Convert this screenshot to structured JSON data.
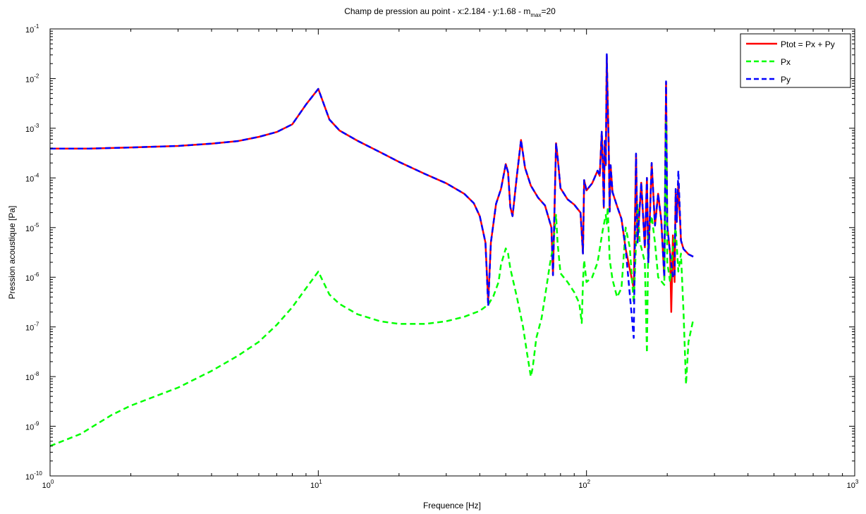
{
  "chart_data": {
    "type": "line",
    "title": {
      "main": "Champ de pression au point - x:2.184 - y:1.68 - m",
      "sub": "max",
      "tail": "=20"
    },
    "xlabel": "Frequence [Hz]",
    "ylabel": "Pression acoustique [Pa]",
    "x_scale": "log",
    "y_scale": "log",
    "xlim": [
      1,
      1000
    ],
    "ylim": [
      1e-10,
      0.1
    ],
    "grid": false,
    "legend_position": "top-right",
    "x_ticks": [
      {
        "value": 1,
        "base": "10",
        "exp": "0"
      },
      {
        "value": 10,
        "base": "10",
        "exp": "1"
      },
      {
        "value": 100,
        "base": "10",
        "exp": "2"
      },
      {
        "value": 1000,
        "base": "10",
        "exp": "3"
      }
    ],
    "y_ticks": [
      {
        "value": 1e-10,
        "base": "10",
        "exp": "-10"
      },
      {
        "value": 1e-09,
        "base": "10",
        "exp": "-9"
      },
      {
        "value": 1e-08,
        "base": "10",
        "exp": "-8"
      },
      {
        "value": 1e-07,
        "base": "10",
        "exp": "-7"
      },
      {
        "value": 1e-06,
        "base": "10",
        "exp": "-6"
      },
      {
        "value": 1e-05,
        "base": "10",
        "exp": "-5"
      },
      {
        "value": 0.0001,
        "base": "10",
        "exp": "-4"
      },
      {
        "value": 0.001,
        "base": "10",
        "exp": "-3"
      },
      {
        "value": 0.01,
        "base": "10",
        "exp": "-2"
      },
      {
        "value": 0.1,
        "base": "10",
        "exp": "-1"
      }
    ],
    "series": [
      {
        "name": "Ptot = Px + Py",
        "color": "#ff0000",
        "dash": "solid",
        "points": [
          [
            1,
            0.00039
          ],
          [
            1.4,
            0.00039
          ],
          [
            2,
            0.00041
          ],
          [
            3,
            0.00044
          ],
          [
            4,
            0.00049
          ],
          [
            5,
            0.00055
          ],
          [
            6,
            0.00067
          ],
          [
            7,
            0.00084
          ],
          [
            8,
            0.0012
          ],
          [
            9,
            0.003
          ],
          [
            10,
            0.0062
          ],
          [
            11,
            0.0015
          ],
          [
            12,
            0.0009
          ],
          [
            14,
            0.00056
          ],
          [
            17,
            0.00033
          ],
          [
            20,
            0.00021
          ],
          [
            25,
            0.00012
          ],
          [
            30,
            7.8e-05
          ],
          [
            35,
            4.8e-05
          ],
          [
            38,
            3.1e-05
          ],
          [
            40,
            1.7e-05
          ],
          [
            42,
            5e-06
          ],
          [
            43,
            3.2e-07
          ],
          [
            44,
            5e-06
          ],
          [
            46,
            3e-05
          ],
          [
            48,
            6e-05
          ],
          [
            50,
            0.00019
          ],
          [
            51,
            0.00013
          ],
          [
            52,
            2.6e-05
          ],
          [
            53,
            1.7e-05
          ],
          [
            55,
            0.00011
          ],
          [
            57,
            0.00058
          ],
          [
            59,
            0.00016
          ],
          [
            62,
            7e-05
          ],
          [
            66,
            4e-05
          ],
          [
            70,
            2.8e-05
          ],
          [
            74,
            1e-05
          ],
          [
            75,
            1.1e-06
          ],
          [
            76,
            2.4e-05
          ],
          [
            77,
            0.0005
          ],
          [
            78,
            0.00027
          ],
          [
            80,
            6.2e-05
          ],
          [
            85,
            3.7e-05
          ],
          [
            90,
            2.9e-05
          ],
          [
            95,
            2e-05
          ],
          [
            97,
            3e-06
          ],
          [
            98,
            9e-05
          ],
          [
            100,
            5.6e-05
          ],
          [
            105,
            7.8e-05
          ],
          [
            110,
            0.00014
          ],
          [
            112,
            0.00011
          ],
          [
            114,
            0.00085
          ],
          [
            115,
            0.0002
          ],
          [
            116,
            2.5e-05
          ],
          [
            117,
            0.00056
          ],
          [
            118,
            0.00018
          ],
          [
            119,
            0.029
          ],
          [
            120,
            0.0032
          ],
          [
            121,
            0.00046
          ],
          [
            122,
            2.1e-05
          ],
          [
            123,
            0.00018
          ],
          [
            125,
            5.2e-05
          ],
          [
            130,
            2.7e-05
          ],
          [
            135,
            1.5e-05
          ],
          [
            140,
            3.7e-06
          ],
          [
            150,
            6e-07
          ],
          [
            153,
            0.0003
          ],
          [
            155,
            5e-06
          ],
          [
            160,
            8e-05
          ],
          [
            165,
            4e-06
          ],
          [
            168,
            0.0001
          ],
          [
            170,
            2e-06
          ],
          [
            175,
            0.0002
          ],
          [
            180,
            1.1e-05
          ],
          [
            185,
            4.8e-05
          ],
          [
            190,
            1.4e-05
          ],
          [
            195,
            1e-06
          ],
          [
            198,
            0.0084
          ],
          [
            200,
            1.1e-05
          ],
          [
            205,
            3e-06
          ],
          [
            207,
            2e-07
          ],
          [
            210,
            7e-06
          ],
          [
            213,
            8e-07
          ],
          [
            215,
            5.2e-05
          ],
          [
            217,
            1.3e-05
          ],
          [
            220,
            8e-05
          ],
          [
            225,
            5.5e-06
          ],
          [
            230,
            3.7e-06
          ],
          [
            240,
            2.9e-06
          ],
          [
            250,
            2.6e-06
          ]
        ]
      },
      {
        "name": "Px",
        "color": "#00ff00",
        "dash": "dashed",
        "points": [
          [
            1,
            4e-10
          ],
          [
            1.3,
            7e-10
          ],
          [
            1.7,
            1.7e-09
          ],
          [
            2,
            2.6e-09
          ],
          [
            3,
            6e-09
          ],
          [
            4,
            1.3e-08
          ],
          [
            5,
            2.6e-08
          ],
          [
            6,
            5e-08
          ],
          [
            7,
            1.1e-07
          ],
          [
            8,
            2.5e-07
          ],
          [
            9,
            6e-07
          ],
          [
            10,
            1.3e-06
          ],
          [
            11,
            4.5e-07
          ],
          [
            12,
            2.9e-07
          ],
          [
            14,
            1.8e-07
          ],
          [
            17,
            1.3e-07
          ],
          [
            20,
            1.15e-07
          ],
          [
            25,
            1.15e-07
          ],
          [
            30,
            1.3e-07
          ],
          [
            35,
            1.6e-07
          ],
          [
            40,
            2.1e-07
          ],
          [
            43,
            2.8e-07
          ],
          [
            45,
            4.2e-07
          ],
          [
            47,
            8e-07
          ],
          [
            48,
            1.8e-06
          ],
          [
            50,
            3.8e-06
          ],
          [
            51,
            3e-06
          ],
          [
            52,
            1.5e-06
          ],
          [
            55,
            4e-07
          ],
          [
            58,
            1e-07
          ],
          [
            60,
            3e-08
          ],
          [
            62,
            1e-08
          ],
          [
            63,
            1.5e-08
          ],
          [
            65,
            6e-08
          ],
          [
            68,
            1.5e-07
          ],
          [
            70,
            4e-07
          ],
          [
            73,
            1.8e-06
          ],
          [
            75,
            4e-06
          ],
          [
            77,
            1.8e-05
          ],
          [
            78,
            5e-06
          ],
          [
            80,
            1.2e-06
          ],
          [
            85,
            8e-07
          ],
          [
            90,
            5e-07
          ],
          [
            94,
            3e-07
          ],
          [
            96,
            1.2e-07
          ],
          [
            97,
            8e-07
          ],
          [
            98,
            2.2e-06
          ],
          [
            100,
            8e-07
          ],
          [
            105,
            1e-06
          ],
          [
            110,
            2e-06
          ],
          [
            115,
            9e-06
          ],
          [
            118,
            1.8e-05
          ],
          [
            119,
            1.2e-05
          ],
          [
            120,
            2.6e-05
          ],
          [
            122,
            2.3e-06
          ],
          [
            125,
            9e-07
          ],
          [
            130,
            4e-07
          ],
          [
            135,
            6e-07
          ],
          [
            140,
            1e-05
          ],
          [
            145,
            4e-06
          ],
          [
            150,
            3e-07
          ],
          [
            155,
            2.9e-05
          ],
          [
            158,
            5e-06
          ],
          [
            160,
            4e-06
          ],
          [
            165,
            2e-06
          ],
          [
            168,
            3e-08
          ],
          [
            170,
            7e-06
          ],
          [
            175,
            1.7e-05
          ],
          [
            180,
            5e-06
          ],
          [
            185,
            1e-06
          ],
          [
            195,
            7e-07
          ],
          [
            198,
            0.0013
          ],
          [
            200,
            2e-06
          ],
          [
            205,
            8e-07
          ],
          [
            210,
            4e-06
          ],
          [
            215,
            1e-05
          ],
          [
            220,
            1.3e-06
          ],
          [
            225,
            3e-06
          ],
          [
            230,
            2e-07
          ],
          [
            235,
            7e-09
          ],
          [
            240,
            5e-08
          ],
          [
            250,
            1.4e-07
          ]
        ]
      },
      {
        "name": "Py",
        "color": "#0000ff",
        "dash": "dashed",
        "points": [
          [
            1,
            0.00039
          ],
          [
            1.4,
            0.00039
          ],
          [
            2,
            0.00041
          ],
          [
            3,
            0.00044
          ],
          [
            4,
            0.00049
          ],
          [
            5,
            0.00055
          ],
          [
            6,
            0.00067
          ],
          [
            7,
            0.00084
          ],
          [
            8,
            0.0012
          ],
          [
            9,
            0.003
          ],
          [
            10,
            0.0062
          ],
          [
            11,
            0.0015
          ],
          [
            12,
            0.0009
          ],
          [
            14,
            0.00056
          ],
          [
            17,
            0.00033
          ],
          [
            20,
            0.00021
          ],
          [
            25,
            0.00012
          ],
          [
            30,
            7.8e-05
          ],
          [
            35,
            4.8e-05
          ],
          [
            38,
            3.1e-05
          ],
          [
            40,
            1.7e-05
          ],
          [
            42,
            5e-06
          ],
          [
            43,
            2.6e-07
          ],
          [
            44,
            5e-06
          ],
          [
            46,
            3e-05
          ],
          [
            48,
            6e-05
          ],
          [
            50,
            0.00019
          ],
          [
            51,
            0.00013
          ],
          [
            52,
            2.6e-05
          ],
          [
            53,
            1.7e-05
          ],
          [
            55,
            0.00011
          ],
          [
            57,
            0.00058
          ],
          [
            59,
            0.00016
          ],
          [
            62,
            7e-05
          ],
          [
            66,
            4e-05
          ],
          [
            70,
            2.8e-05
          ],
          [
            74,
            1e-05
          ],
          [
            75,
            1.1e-06
          ],
          [
            76,
            2.4e-05
          ],
          [
            77,
            0.0005
          ],
          [
            78,
            0.00027
          ],
          [
            80,
            6.2e-05
          ],
          [
            85,
            3.7e-05
          ],
          [
            90,
            2.9e-05
          ],
          [
            95,
            2e-05
          ],
          [
            97,
            3e-06
          ],
          [
            98,
            9e-05
          ],
          [
            100,
            5.6e-05
          ],
          [
            105,
            7.8e-05
          ],
          [
            110,
            0.00014
          ],
          [
            112,
            0.00011
          ],
          [
            114,
            0.00085
          ],
          [
            115,
            0.0002
          ],
          [
            116,
            2.5e-05
          ],
          [
            117,
            0.00056
          ],
          [
            118,
            0.00018
          ],
          [
            119,
            0.031
          ],
          [
            120,
            0.0032
          ],
          [
            121,
            0.00046
          ],
          [
            122,
            2.1e-05
          ],
          [
            123,
            0.00018
          ],
          [
            125,
            5.2e-05
          ],
          [
            130,
            2.7e-05
          ],
          [
            135,
            1.5e-05
          ],
          [
            140,
            3.7e-06
          ],
          [
            150,
            6e-08
          ],
          [
            153,
            0.00031
          ],
          [
            155,
            5e-06
          ],
          [
            160,
            8e-05
          ],
          [
            165,
            4e-06
          ],
          [
            168,
            0.0001
          ],
          [
            170,
            2e-06
          ],
          [
            175,
            0.0002
          ],
          [
            180,
            1.1e-05
          ],
          [
            185,
            4.8e-05
          ],
          [
            190,
            1.4e-05
          ],
          [
            195,
            1e-06
          ],
          [
            198,
            0.0088
          ],
          [
            200,
            1.1e-05
          ],
          [
            205,
            3e-06
          ],
          [
            210,
            1e-06
          ],
          [
            213,
            1e-06
          ],
          [
            215,
            6e-05
          ],
          [
            217,
            1.3e-05
          ],
          [
            220,
            0.00014
          ],
          [
            225,
            5.5e-06
          ],
          [
            230,
            3.7e-06
          ],
          [
            240,
            2.9e-06
          ],
          [
            250,
            2.6e-06
          ]
        ]
      }
    ]
  }
}
